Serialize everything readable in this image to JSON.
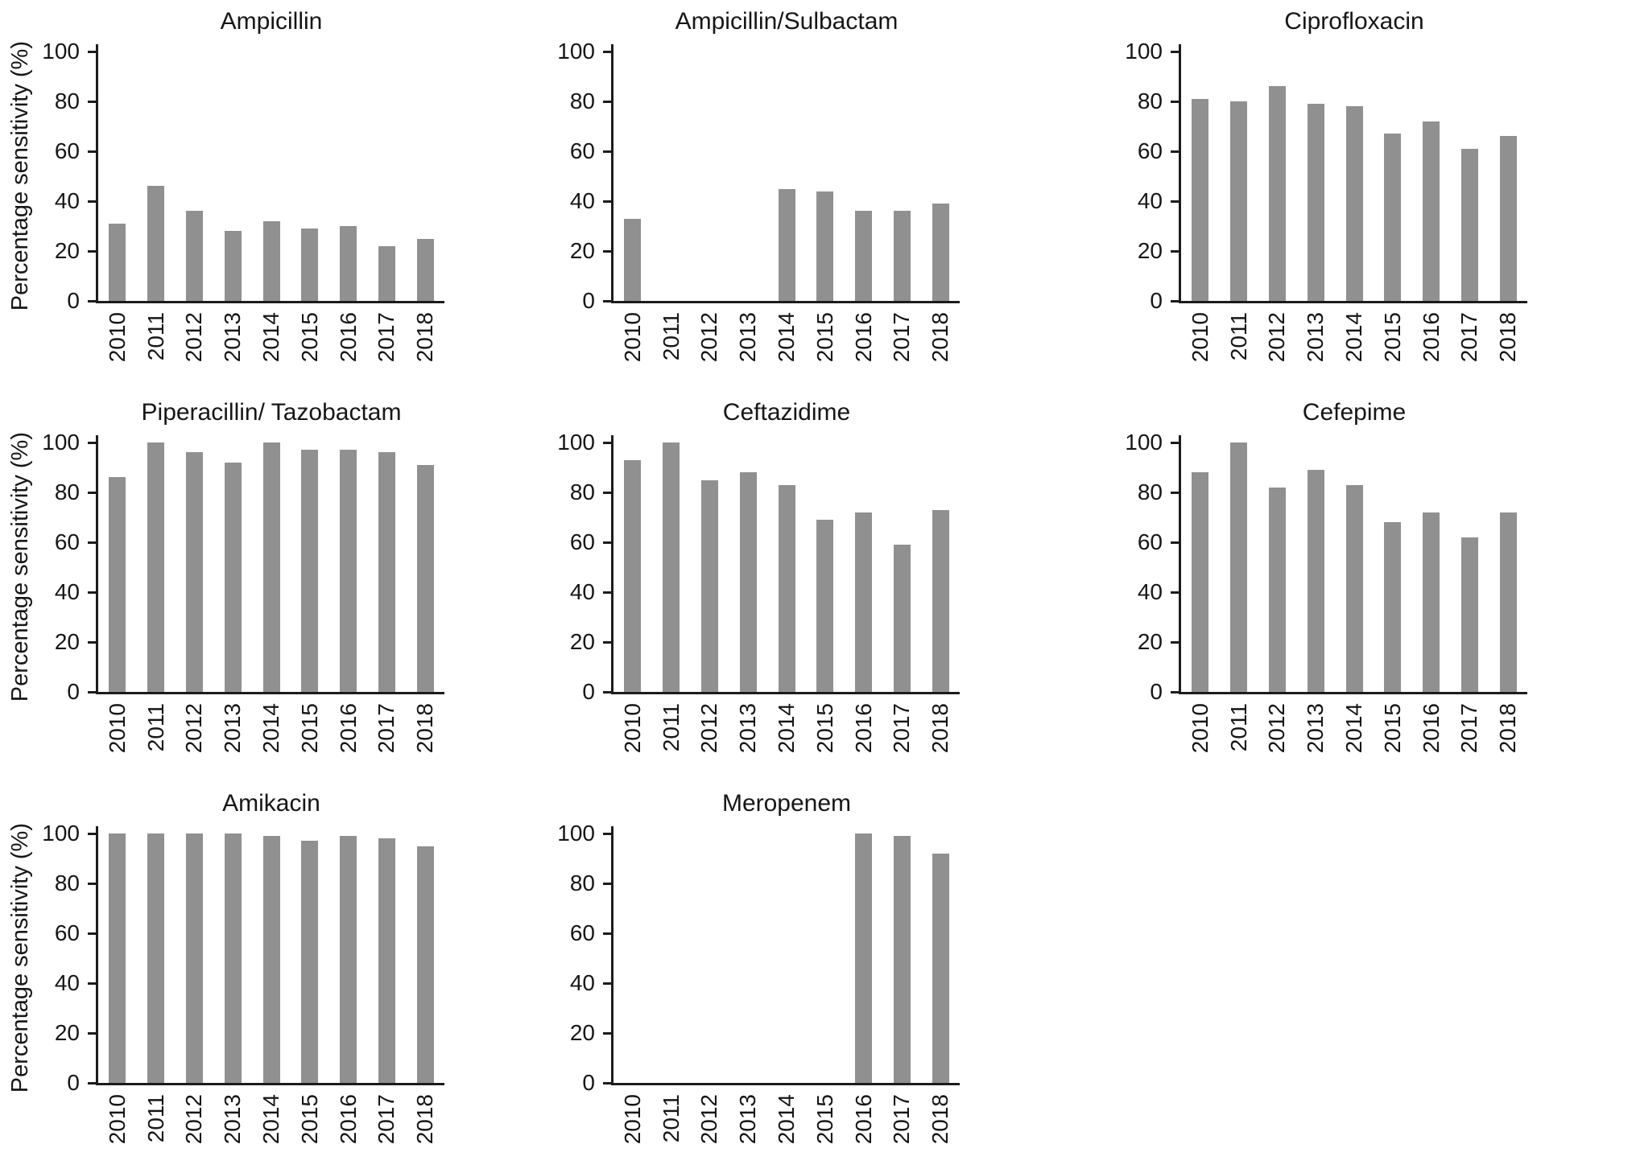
{
  "figure": {
    "ylabel": "Percentage sensitivity (%)",
    "years": [
      "2010",
      "2011",
      "2012",
      "2013",
      "2014",
      "2015",
      "2016",
      "2017",
      "2018"
    ],
    "yticks": [
      100,
      80,
      60,
      40,
      20,
      0
    ],
    "bar_color": "#909090",
    "axis_color": "#1c1c1c",
    "ylim": [
      0,
      100
    ]
  },
  "chart_data": [
    {
      "type": "bar",
      "title": "Ampicillin",
      "categories": [
        "2010",
        "2011",
        "2012",
        "2013",
        "2014",
        "2015",
        "2016",
        "2017",
        "2018"
      ],
      "values": [
        31,
        46,
        36,
        28,
        32,
        29,
        30,
        22,
        25
      ],
      "xlabel": "",
      "ylabel": "Percentage sensitivity (%)",
      "ylim": [
        0,
        100
      ],
      "grid": false
    },
    {
      "type": "bar",
      "title": "Ampicillin/Sulbactam",
      "categories": [
        "2010",
        "2011",
        "2012",
        "2013",
        "2014",
        "2015",
        "2016",
        "2017",
        "2018"
      ],
      "values": [
        33,
        0,
        0,
        0,
        45,
        44,
        36,
        36,
        39
      ],
      "xlabel": "",
      "ylabel": "",
      "ylim": [
        0,
        100
      ],
      "grid": false
    },
    {
      "type": "bar",
      "title": "Ciprofloxacin",
      "categories": [
        "2010",
        "2011",
        "2012",
        "2013",
        "2014",
        "2015",
        "2016",
        "2017",
        "2018"
      ],
      "values": [
        81,
        80,
        86,
        79,
        78,
        67,
        72,
        61,
        66
      ],
      "xlabel": "",
      "ylabel": "",
      "ylim": [
        0,
        100
      ],
      "grid": false
    },
    {
      "type": "bar",
      "title": "Piperacillin/ Tazobactam",
      "categories": [
        "2010",
        "2011",
        "2012",
        "2013",
        "2014",
        "2015",
        "2016",
        "2017",
        "2018"
      ],
      "values": [
        86,
        100,
        96,
        92,
        100,
        97,
        97,
        96,
        91
      ],
      "xlabel": "",
      "ylabel": "Percentage sensitivity (%)",
      "ylim": [
        0,
        100
      ],
      "grid": false
    },
    {
      "type": "bar",
      "title": "Ceftazidime",
      "categories": [
        "2010",
        "2011",
        "2012",
        "2013",
        "2014",
        "2015",
        "2016",
        "2017",
        "2018"
      ],
      "values": [
        93,
        100,
        85,
        88,
        83,
        69,
        72,
        59,
        73
      ],
      "xlabel": "",
      "ylabel": "",
      "ylim": [
        0,
        100
      ],
      "grid": false
    },
    {
      "type": "bar",
      "title": "Cefepime",
      "categories": [
        "2010",
        "2011",
        "2012",
        "2013",
        "2014",
        "2015",
        "2016",
        "2017",
        "2018"
      ],
      "values": [
        88,
        100,
        82,
        89,
        83,
        68,
        72,
        62,
        72
      ],
      "xlabel": "",
      "ylabel": "",
      "ylim": [
        0,
        100
      ],
      "grid": false
    },
    {
      "type": "bar",
      "title": "Amikacin",
      "categories": [
        "2010",
        "2011",
        "2012",
        "2013",
        "2014",
        "2015",
        "2016",
        "2017",
        "2018"
      ],
      "values": [
        100,
        100,
        100,
        100,
        99,
        97,
        99,
        98,
        95
      ],
      "xlabel": "",
      "ylabel": "Percentage sensitivity (%)",
      "ylim": [
        0,
        100
      ],
      "grid": false
    },
    {
      "type": "bar",
      "title": "Meropenem",
      "categories": [
        "2010",
        "2011",
        "2012",
        "2013",
        "2014",
        "2015",
        "2016",
        "2017",
        "2018"
      ],
      "values": [
        0,
        0,
        0,
        0,
        0,
        0,
        100,
        99,
        92
      ],
      "xlabel": "",
      "ylabel": "",
      "ylim": [
        0,
        100
      ],
      "grid": false
    }
  ]
}
